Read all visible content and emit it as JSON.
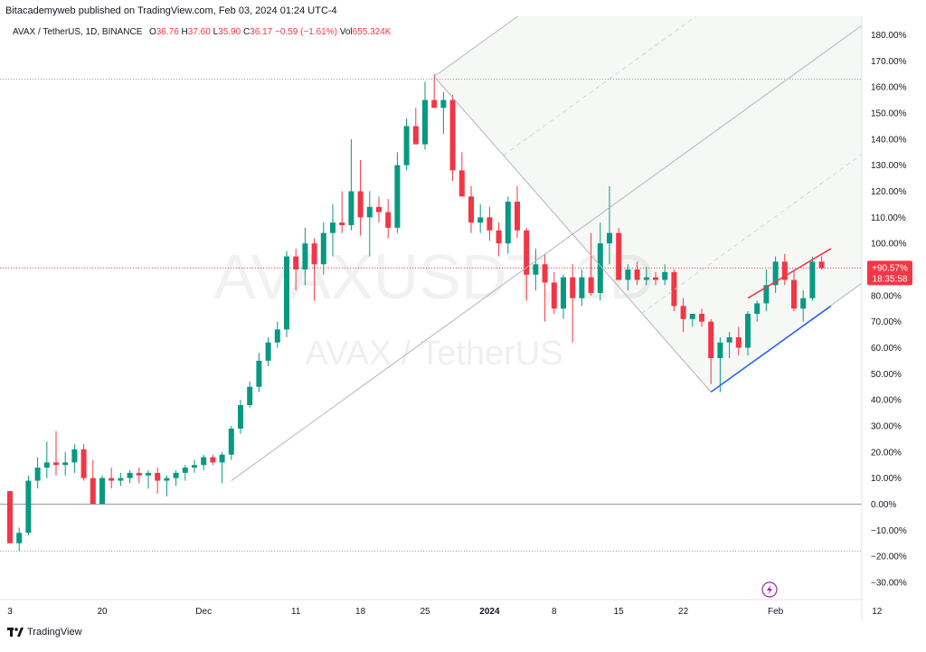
{
  "header": {
    "credit": "Bitacademyweb published on TradingView.com, Feb 03, 2024 01:24 UTC-4",
    "symbol": "AVAX / TetherUS, 1D, BINANCE",
    "o_label": "O",
    "o_value": "36.76",
    "h_label": "H",
    "h_value": "37.60",
    "l_label": "L",
    "l_value": "35.90",
    "c_label": "C",
    "c_value": "36.17",
    "change": "−0.59 (−1.61%)",
    "vol_label": "Vol",
    "vol_value": "655.324K"
  },
  "watermark": {
    "main": "AVAXUSDT, 1D",
    "sub": "AVAX / TetherUS"
  },
  "price_badge": {
    "value": "+90.57%",
    "countdown": "18:35:58",
    "color": "#f23645"
  },
  "footer": {
    "brand": "TradingView"
  },
  "colors": {
    "up": "#089981",
    "down": "#f23645",
    "pitchfork": "#b2b5be",
    "trend_blue": "#2962ff",
    "trend_red": "#f23645",
    "fill": "#eef2ee"
  },
  "chart_data": {
    "type": "candlestick",
    "y_unit": "percent",
    "y_ticks": [
      "180.00%",
      "170.00%",
      "160.00%",
      "150.00%",
      "140.00%",
      "130.00%",
      "120.00%",
      "110.00%",
      "100.00%",
      "90.00%",
      "80.00%",
      "70.00%",
      "60.00%",
      "50.00%",
      "40.00%",
      "30.00%",
      "20.00%",
      "10.00%",
      "0.00%",
      "−10.00%",
      "−20.00%",
      "−30.00%"
    ],
    "y_tick_values": [
      180,
      170,
      160,
      150,
      140,
      130,
      120,
      110,
      100,
      90,
      80,
      70,
      60,
      50,
      40,
      30,
      20,
      10,
      0,
      -10,
      -20,
      -30
    ],
    "ylim": [
      -33,
      184
    ],
    "x_ticks": [
      {
        "label": "3",
        "bold": false,
        "day": 0
      },
      {
        "label": "20",
        "bold": false,
        "day": 10
      },
      {
        "label": "Dec",
        "bold": false,
        "day": 21
      },
      {
        "label": "11",
        "bold": false,
        "day": 31
      },
      {
        "label": "18",
        "bold": false,
        "day": 38
      },
      {
        "label": "25",
        "bold": false,
        "day": 45
      },
      {
        "label": "2024",
        "bold": true,
        "day": 52
      },
      {
        "label": "8",
        "bold": false,
        "day": 59
      },
      {
        "label": "15",
        "bold": false,
        "day": 66
      },
      {
        "label": "22",
        "bold": false,
        "day": 73
      },
      {
        "label": "Feb",
        "bold": false,
        "day": 83
      },
      {
        "label": "12",
        "bold": false,
        "day": 94
      }
    ],
    "candles": [
      {
        "day": 0,
        "o": 5,
        "h": 5,
        "l": -15,
        "c": -15
      },
      {
        "day": 1,
        "o": -15,
        "h": -9,
        "l": -18,
        "c": -11
      },
      {
        "day": 2,
        "o": -11,
        "h": 11,
        "l": -12,
        "c": 9
      },
      {
        "day": 3,
        "o": 9,
        "h": 18,
        "l": 6,
        "c": 14
      },
      {
        "day": 4,
        "o": 14,
        "h": 24,
        "l": 10,
        "c": 16
      },
      {
        "day": 5,
        "o": 16,
        "h": 28,
        "l": 11,
        "c": 15
      },
      {
        "day": 6,
        "o": 15,
        "h": 20,
        "l": 11,
        "c": 16
      },
      {
        "day": 7,
        "o": 16,
        "h": 23,
        "l": 12,
        "c": 21
      },
      {
        "day": 8,
        "o": 21,
        "h": 23,
        "l": 9,
        "c": 10
      },
      {
        "day": 9,
        "o": 10,
        "h": 17,
        "l": 1,
        "c": 0
      },
      {
        "day": 10,
        "o": 0,
        "h": 11,
        "l": 0,
        "c": 10
      },
      {
        "day": 11,
        "o": 10,
        "h": 14,
        "l": 6,
        "c": 9
      },
      {
        "day": 12,
        "o": 9,
        "h": 12,
        "l": 7,
        "c": 10
      },
      {
        "day": 13,
        "o": 10,
        "h": 13,
        "l": 8,
        "c": 12
      },
      {
        "day": 14,
        "o": 12,
        "h": 14,
        "l": 8,
        "c": 11
      },
      {
        "day": 15,
        "o": 11,
        "h": 13,
        "l": 6,
        "c": 12
      },
      {
        "day": 16,
        "o": 12,
        "h": 14,
        "l": 4,
        "c": 9
      },
      {
        "day": 17,
        "o": 9,
        "h": 11,
        "l": 3,
        "c": 10
      },
      {
        "day": 18,
        "o": 10,
        "h": 13,
        "l": 7,
        "c": 12
      },
      {
        "day": 19,
        "o": 12,
        "h": 15,
        "l": 9,
        "c": 14
      },
      {
        "day": 20,
        "o": 14,
        "h": 17,
        "l": 12,
        "c": 15
      },
      {
        "day": 21,
        "o": 15,
        "h": 19,
        "l": 13,
        "c": 18
      },
      {
        "day": 22,
        "o": 18,
        "h": 19,
        "l": 15,
        "c": 16
      },
      {
        "day": 23,
        "o": 16,
        "h": 20,
        "l": 8,
        "c": 19
      },
      {
        "day": 24,
        "o": 19,
        "h": 30,
        "l": 17,
        "c": 29
      },
      {
        "day": 25,
        "o": 29,
        "h": 40,
        "l": 27,
        "c": 38
      },
      {
        "day": 26,
        "o": 38,
        "h": 47,
        "l": 37,
        "c": 45
      },
      {
        "day": 27,
        "o": 45,
        "h": 58,
        "l": 43,
        "c": 55
      },
      {
        "day": 28,
        "o": 55,
        "h": 64,
        "l": 53,
        "c": 62
      },
      {
        "day": 29,
        "o": 62,
        "h": 70,
        "l": 60,
        "c": 67
      },
      {
        "day": 30,
        "o": 67,
        "h": 97,
        "l": 64,
        "c": 95
      },
      {
        "day": 31,
        "o": 95,
        "h": 98,
        "l": 82,
        "c": 90
      },
      {
        "day": 32,
        "o": 90,
        "h": 106,
        "l": 84,
        "c": 100
      },
      {
        "day": 33,
        "o": 100,
        "h": 102,
        "l": 78,
        "c": 92
      },
      {
        "day": 34,
        "o": 92,
        "h": 108,
        "l": 88,
        "c": 104
      },
      {
        "day": 35,
        "o": 104,
        "h": 115,
        "l": 95,
        "c": 108
      },
      {
        "day": 36,
        "o": 108,
        "h": 120,
        "l": 104,
        "c": 107
      },
      {
        "day": 37,
        "o": 107,
        "h": 140,
        "l": 105,
        "c": 120
      },
      {
        "day": 38,
        "o": 120,
        "h": 132,
        "l": 103,
        "c": 110
      },
      {
        "day": 39,
        "o": 110,
        "h": 120,
        "l": 95,
        "c": 114
      },
      {
        "day": 40,
        "o": 114,
        "h": 118,
        "l": 108,
        "c": 112
      },
      {
        "day": 41,
        "o": 112,
        "h": 117,
        "l": 102,
        "c": 106
      },
      {
        "day": 42,
        "o": 106,
        "h": 135,
        "l": 104,
        "c": 130
      },
      {
        "day": 43,
        "o": 130,
        "h": 148,
        "l": 128,
        "c": 145
      },
      {
        "day": 44,
        "o": 145,
        "h": 152,
        "l": 138,
        "c": 138
      },
      {
        "day": 45,
        "o": 138,
        "h": 162,
        "l": 136,
        "c": 155
      },
      {
        "day": 46,
        "o": 155,
        "h": 165,
        "l": 152,
        "c": 152
      },
      {
        "day": 47,
        "o": 152,
        "h": 158,
        "l": 142,
        "c": 155
      },
      {
        "day": 48,
        "o": 155,
        "h": 157,
        "l": 124,
        "c": 128
      },
      {
        "day": 49,
        "o": 128,
        "h": 135,
        "l": 118,
        "c": 118
      },
      {
        "day": 50,
        "o": 118,
        "h": 122,
        "l": 104,
        "c": 108
      },
      {
        "day": 51,
        "o": 108,
        "h": 115,
        "l": 104,
        "c": 110
      },
      {
        "day": 52,
        "o": 110,
        "h": 114,
        "l": 101,
        "c": 105
      },
      {
        "day": 53,
        "o": 105,
        "h": 108,
        "l": 95,
        "c": 100
      },
      {
        "day": 54,
        "o": 100,
        "h": 118,
        "l": 96,
        "c": 116
      },
      {
        "day": 55,
        "o": 116,
        "h": 122,
        "l": 102,
        "c": 105
      },
      {
        "day": 56,
        "o": 105,
        "h": 106,
        "l": 78,
        "c": 88
      },
      {
        "day": 57,
        "o": 88,
        "h": 98,
        "l": 82,
        "c": 92
      },
      {
        "day": 58,
        "o": 92,
        "h": 96,
        "l": 70,
        "c": 85
      },
      {
        "day": 59,
        "o": 85,
        "h": 89,
        "l": 73,
        "c": 75
      },
      {
        "day": 60,
        "o": 75,
        "h": 88,
        "l": 71,
        "c": 87
      },
      {
        "day": 61,
        "o": 87,
        "h": 92,
        "l": 62,
        "c": 79
      },
      {
        "day": 62,
        "o": 79,
        "h": 90,
        "l": 76,
        "c": 87
      },
      {
        "day": 63,
        "o": 87,
        "h": 104,
        "l": 80,
        "c": 81
      },
      {
        "day": 64,
        "o": 81,
        "h": 108,
        "l": 78,
        "c": 100
      },
      {
        "day": 65,
        "o": 100,
        "h": 122,
        "l": 92,
        "c": 104
      },
      {
        "day": 66,
        "o": 104,
        "h": 106,
        "l": 86,
        "c": 86
      },
      {
        "day": 67,
        "o": 86,
        "h": 92,
        "l": 82,
        "c": 90
      },
      {
        "day": 68,
        "o": 90,
        "h": 93,
        "l": 84,
        "c": 86
      },
      {
        "day": 69,
        "o": 86,
        "h": 91,
        "l": 84,
        "c": 87
      },
      {
        "day": 70,
        "o": 87,
        "h": 89,
        "l": 84,
        "c": 86
      },
      {
        "day": 71,
        "o": 86,
        "h": 92,
        "l": 84,
        "c": 89
      },
      {
        "day": 72,
        "o": 89,
        "h": 90,
        "l": 74,
        "c": 76
      },
      {
        "day": 73,
        "o": 76,
        "h": 79,
        "l": 66,
        "c": 71
      },
      {
        "day": 74,
        "o": 71,
        "h": 73,
        "l": 68,
        "c": 73
      },
      {
        "day": 75,
        "o": 73,
        "h": 75,
        "l": 68,
        "c": 70
      },
      {
        "day": 76,
        "o": 70,
        "h": 71,
        "l": 46,
        "c": 56
      },
      {
        "day": 77,
        "o": 56,
        "h": 64,
        "l": 43,
        "c": 62
      },
      {
        "day": 78,
        "o": 62,
        "h": 66,
        "l": 56,
        "c": 64
      },
      {
        "day": 79,
        "o": 64,
        "h": 68,
        "l": 57,
        "c": 60
      },
      {
        "day": 80,
        "o": 60,
        "h": 74,
        "l": 57,
        "c": 73
      },
      {
        "day": 81,
        "o": 73,
        "h": 78,
        "l": 70,
        "c": 77
      },
      {
        "day": 82,
        "o": 77,
        "h": 90,
        "l": 74,
        "c": 84
      },
      {
        "day": 83,
        "o": 84,
        "h": 95,
        "l": 81,
        "c": 93
      },
      {
        "day": 84,
        "o": 93,
        "h": 96,
        "l": 84,
        "c": 86
      },
      {
        "day": 85,
        "o": 86,
        "h": 90,
        "l": 74,
        "c": 75
      },
      {
        "day": 86,
        "o": 75,
        "h": 82,
        "l": 70,
        "c": 79
      },
      {
        "day": 87,
        "o": 79,
        "h": 95,
        "l": 78,
        "c": 93
      },
      {
        "day": 88,
        "o": 93,
        "h": 95,
        "l": 90,
        "c": 90.57
      }
    ],
    "horizontal_lines": [
      {
        "value": 163,
        "style": "dotted"
      },
      {
        "value": 90.57,
        "style": "dotted-red"
      },
      {
        "value": 0,
        "style": "solid"
      },
      {
        "value": -18,
        "style": "dotted"
      }
    ],
    "pitchfork": {
      "p1": {
        "day": 24,
        "value": 9
      },
      "p2": {
        "day": 46,
        "value": 164
      },
      "p3": {
        "day": 76,
        "value": 43
      },
      "extend_to_day": 100
    },
    "trendlines": [
      {
        "from": {
          "day": 76,
          "value": 43
        },
        "to": {
          "day": 89,
          "value": 76
        },
        "color": "#2962ff"
      },
      {
        "from": {
          "day": 80,
          "value": 79
        },
        "to": {
          "day": 89,
          "value": 98
        },
        "color": "#f23645"
      }
    ]
  }
}
